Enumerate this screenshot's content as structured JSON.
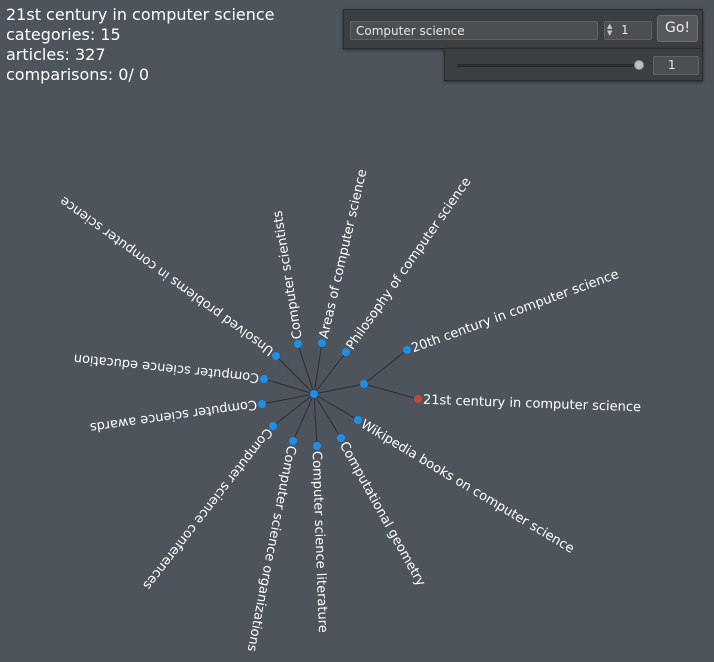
{
  "info": {
    "title": "21st century in computer science",
    "categories": "categories: 15",
    "articles": "articles: 327",
    "comparisons": "comparisons: 0/ 0"
  },
  "search": {
    "value": "Computer science",
    "depth": "1",
    "go_label": "Go!"
  },
  "slider": {
    "value": "1",
    "fraction": 1.0
  },
  "colors": {
    "node": "#1e8fe8",
    "selected_node": "#c0493c",
    "edge": "#2b2f33",
    "label": "#ffffff"
  },
  "graph": {
    "labels": [
      "Areas of computer science",
      "Philosophy of computer science",
      "20th century in computer science",
      "21st century in computer science",
      "Wikipedia books on computer science",
      "Computational geometry",
      "Computer science literature",
      "Computer science organizations",
      "Computer science conferences",
      "Computer science awards",
      "Computer science education",
      "Unsolved problems in computer science",
      "Computer scientists"
    ]
  }
}
